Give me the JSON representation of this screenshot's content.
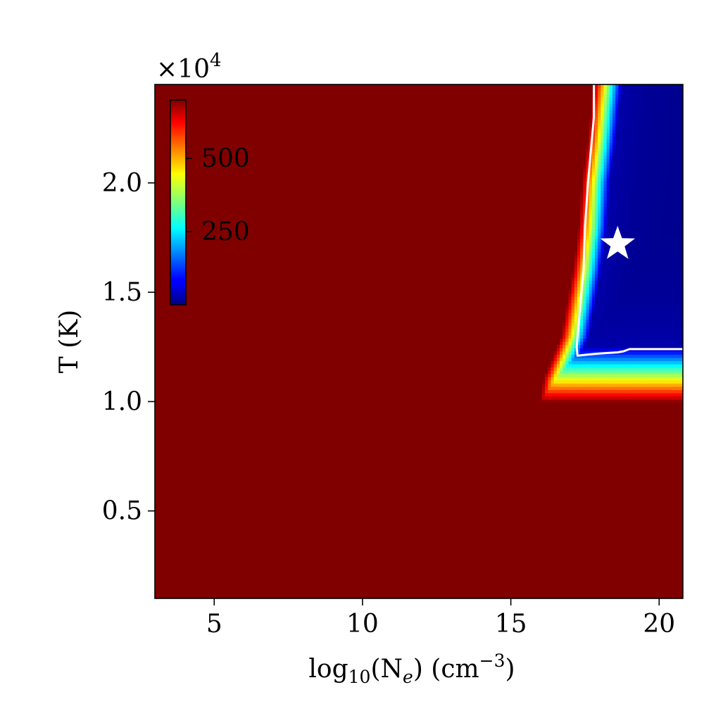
{
  "chart_data": {
    "type": "heatmap",
    "x": {
      "label_base": "log",
      "label_sub": "10",
      "label_mid": "(N",
      "label_sub2": "e",
      "label_unit": ") (cm",
      "label_sup": "−3",
      "label_end": ")",
      "range": [
        3.0,
        20.8
      ],
      "ticks": [
        {
          "value": 5,
          "label": "5"
        },
        {
          "value": 10,
          "label": "10"
        },
        {
          "value": 15,
          "label": "15"
        },
        {
          "value": 20,
          "label": "20"
        }
      ]
    },
    "y": {
      "label": "T (K)",
      "range": [
        0.1,
        2.45
      ],
      "multiplier_base": "×10",
      "multiplier_exp": "4",
      "ticks": [
        {
          "value": 0.5,
          "label": "0.5"
        },
        {
          "value": 1.0,
          "label": "1.0"
        },
        {
          "value": 1.5,
          "label": "1.5"
        },
        {
          "value": 2.0,
          "label": "2.0"
        }
      ]
    },
    "colorbar": {
      "colormap": "jet",
      "range": [
        0,
        700
      ],
      "ticks": [
        {
          "value": 250,
          "label": "250"
        },
        {
          "value": 500,
          "label": "500"
        }
      ],
      "placement": "inset top-left"
    },
    "field": {
      "description": "saturated high values everywhere except a low-value region at high density and high temperature",
      "region_boundary_x": [
        [
          1.0,
          16.0
        ],
        [
          1.1,
          16.1
        ],
        [
          1.2,
          16.4
        ],
        [
          1.3,
          16.7
        ],
        [
          1.45,
          16.9
        ],
        [
          1.6,
          17.1
        ],
        [
          1.8,
          17.3
        ],
        [
          2.0,
          17.4
        ],
        [
          2.2,
          17.6
        ],
        [
          2.45,
          17.8
        ]
      ],
      "bottom_edge_y": 1.0,
      "values": {
        "saturated": 700,
        "minimum": 10
      }
    },
    "contour": {
      "color": "#ffffff",
      "points": [
        [
          17.8,
          2.45
        ],
        [
          17.8,
          2.3
        ],
        [
          17.7,
          2.15
        ],
        [
          17.6,
          2.0
        ],
        [
          17.5,
          1.8
        ],
        [
          17.45,
          1.6
        ],
        [
          17.35,
          1.45
        ],
        [
          17.25,
          1.3
        ],
        [
          17.22,
          1.25
        ],
        [
          17.25,
          1.21
        ],
        [
          17.6,
          1.215
        ],
        [
          18.0,
          1.22
        ],
        [
          18.6,
          1.225
        ],
        [
          18.8,
          1.23
        ],
        [
          19.0,
          1.24
        ],
        [
          20.8,
          1.24
        ]
      ]
    },
    "marker": {
      "symbol": "star",
      "color": "#ffffff",
      "x": 18.6,
      "y": 1.72
    }
  }
}
